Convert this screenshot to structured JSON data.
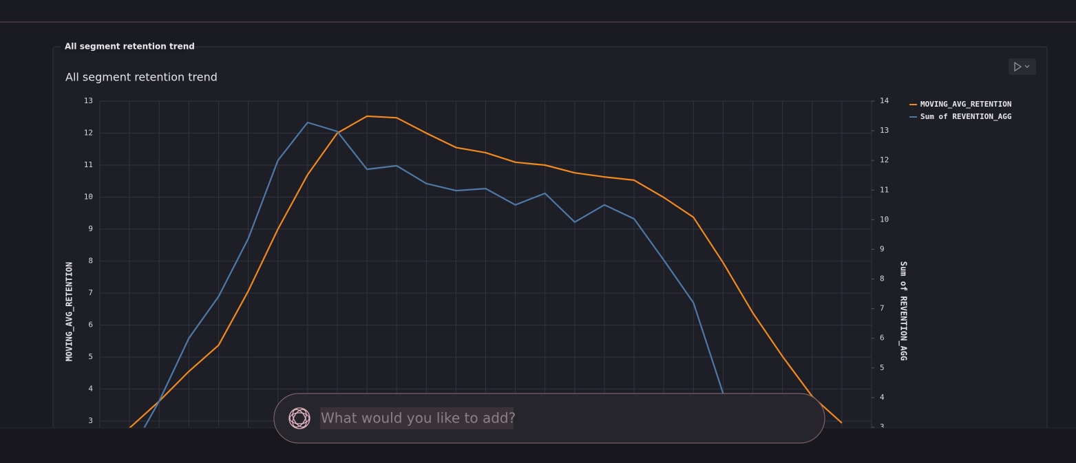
{
  "panel": {
    "legend": "All segment retention trend"
  },
  "chart_data": {
    "type": "line",
    "title": "All segment retention trend",
    "ylabel": "MOVING_AVG_RETENTION",
    "y2label": "Sum of REVENTION_AGG",
    "categories": [
      null,
      null,
      null,
      null,
      null,
      null,
      null,
      null,
      null,
      null,
      null,
      null,
      null,
      null,
      null,
      null,
      null,
      null,
      null,
      null,
      null,
      null,
      null,
      null,
      null
    ],
    "series": [
      {
        "name": "MOVING_AVG_RETENTION",
        "color": "#f28a1e",
        "values": [
          2.78,
          3.62,
          4.55,
          5.37,
          7.06,
          9.0,
          10.7,
          12.0,
          12.53,
          12.48,
          12.0,
          11.55,
          11.39,
          11.09,
          11.0,
          10.76,
          10.63,
          10.53,
          9.99,
          9.37,
          7.95,
          6.38,
          5.02,
          3.77,
          2.94
        ]
      },
      {
        "name": "Sum of REVENTION_AGG",
        "color": "#4e79a7",
        "axis": "y2",
        "values": [
          2.1,
          3.88,
          6.0,
          7.41,
          9.36,
          12.0,
          13.28,
          12.98,
          11.7,
          11.82,
          11.22,
          10.98,
          11.05,
          10.5,
          10.89,
          9.92,
          10.5,
          10.03,
          8.64,
          7.2,
          4.14,
          null,
          null,
          null,
          null
        ]
      }
    ],
    "ylim": [
      3,
      13
    ],
    "yticks": [
      3,
      4,
      5,
      6,
      7,
      8,
      9,
      10,
      11,
      12,
      13
    ],
    "y2lim": [
      3,
      14
    ],
    "y2ticks": [
      3,
      4,
      5,
      6,
      7,
      8,
      9,
      10,
      11,
      12,
      13,
      14
    ],
    "grid": true,
    "legend": "top-right"
  },
  "input": {
    "placeholder": "What would you like to add?"
  }
}
